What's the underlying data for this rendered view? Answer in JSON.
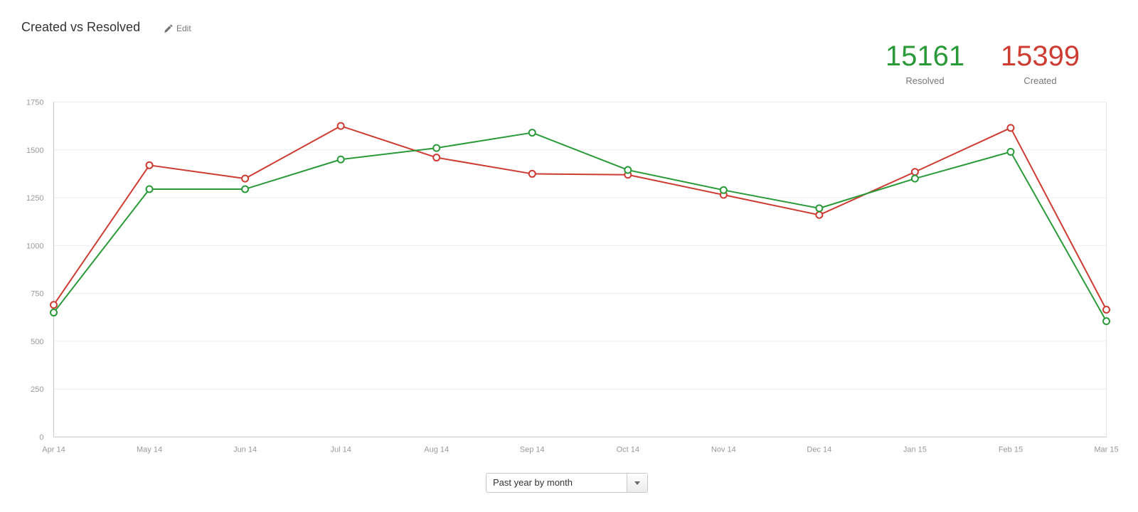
{
  "header": {
    "title": "Created vs Resolved",
    "edit_label": "Edit"
  },
  "summary": {
    "resolved": {
      "value": "15161",
      "label": "Resolved",
      "color": "#2a9a39"
    },
    "created": {
      "value": "15399",
      "label": "Created",
      "color": "#cd3c32"
    }
  },
  "controls": {
    "period_select": {
      "value": "Past year by month"
    }
  },
  "chart_data": {
    "type": "line",
    "title": "Created vs Resolved",
    "x": [
      "Apr 14",
      "May 14",
      "Jun 14",
      "Jul 14",
      "Aug 14",
      "Sep 14",
      "Oct 14",
      "Nov 14",
      "Dec 14",
      "Jan 15",
      "Feb 15",
      "Mar 15"
    ],
    "series": [
      {
        "name": "Created",
        "color": "#cd3c32",
        "marker": "open-circle",
        "values": [
          690,
          1420,
          1350,
          1625,
          1460,
          1375,
          1370,
          1265,
          1160,
          1385,
          1615,
          665
        ]
      },
      {
        "name": "Resolved",
        "color": "#2a9a39",
        "marker": "open-circle",
        "values": [
          650,
          1295,
          1295,
          1450,
          1510,
          1590,
          1395,
          1290,
          1195,
          1350,
          1490,
          605
        ]
      }
    ],
    "ylim": [
      0,
      1750
    ],
    "yticks": [
      0,
      250,
      500,
      750,
      1000,
      1250,
      1500,
      1750
    ],
    "grid": true,
    "legend": "none",
    "colors": {
      "gridline": "#ececec",
      "axis": "#c9c9c9",
      "right_border": "#e8e8e8",
      "tick_text": "#999999"
    }
  }
}
